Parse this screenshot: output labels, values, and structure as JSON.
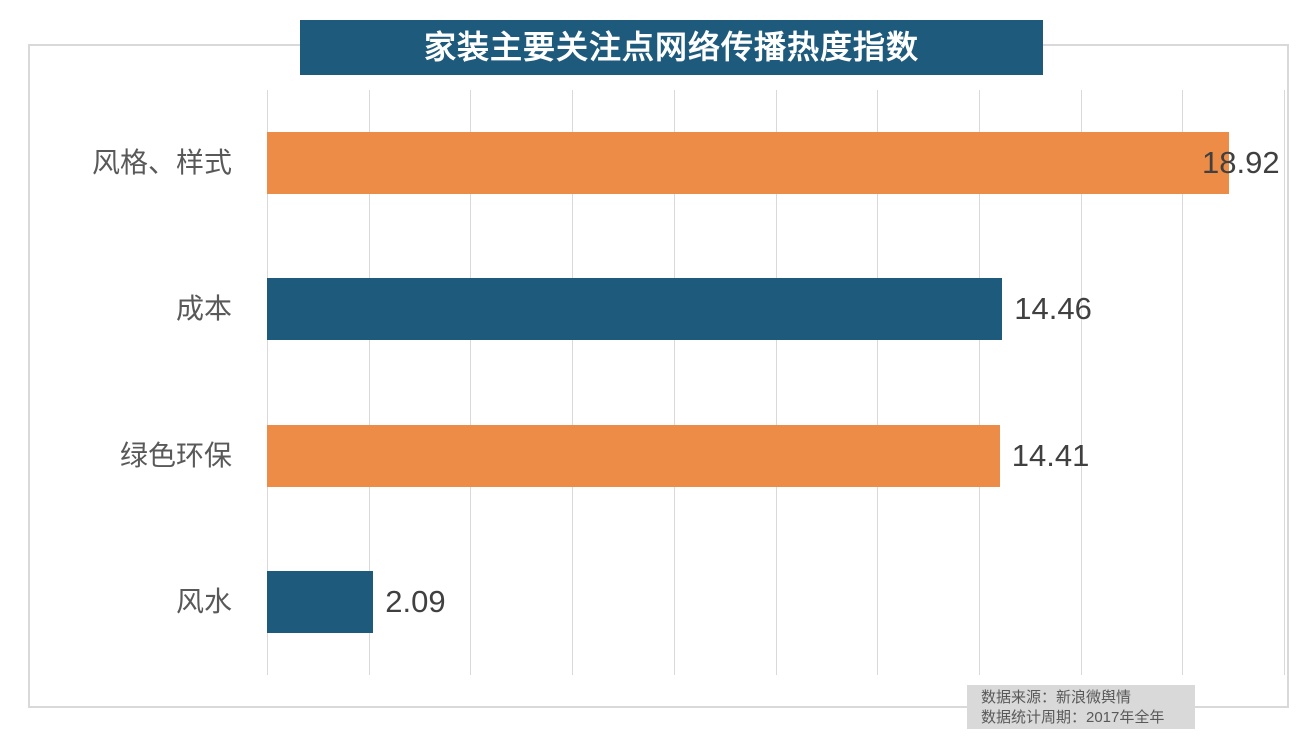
{
  "title": "家装主要关注点网络传播热度指数",
  "chart_data": {
    "type": "bar",
    "orientation": "horizontal",
    "title": "家装主要关注点网络传播热度指数",
    "categories": [
      "风格、样式",
      "成本",
      "绿色环保",
      "风水"
    ],
    "values": [
      18.92,
      14.46,
      14.41,
      2.09
    ],
    "value_labels": [
      "18.92",
      "14.46",
      "14.41",
      "2.09"
    ],
    "bar_color_keys": [
      "orange",
      "teal",
      "orange",
      "teal"
    ],
    "xlabel": "",
    "ylabel": "",
    "xlim": [
      0,
      20
    ],
    "gridline_step": 2,
    "grid": true,
    "legend": "none"
  },
  "colors": {
    "orange": "#ED8C46",
    "teal": "#1E5A7C",
    "title_bg": "#1E5A7C",
    "title_text": "#ffffff",
    "grid": "#d9d9d9",
    "panel_border": "#d9d9d9",
    "category_text": "#595959",
    "value_text": "#404040",
    "source_bg": "#d9d9d9",
    "source_text": "#595959"
  },
  "source": {
    "line1": "数据来源：新浪微舆情",
    "line2": "数据统计周期：2017年全年"
  }
}
